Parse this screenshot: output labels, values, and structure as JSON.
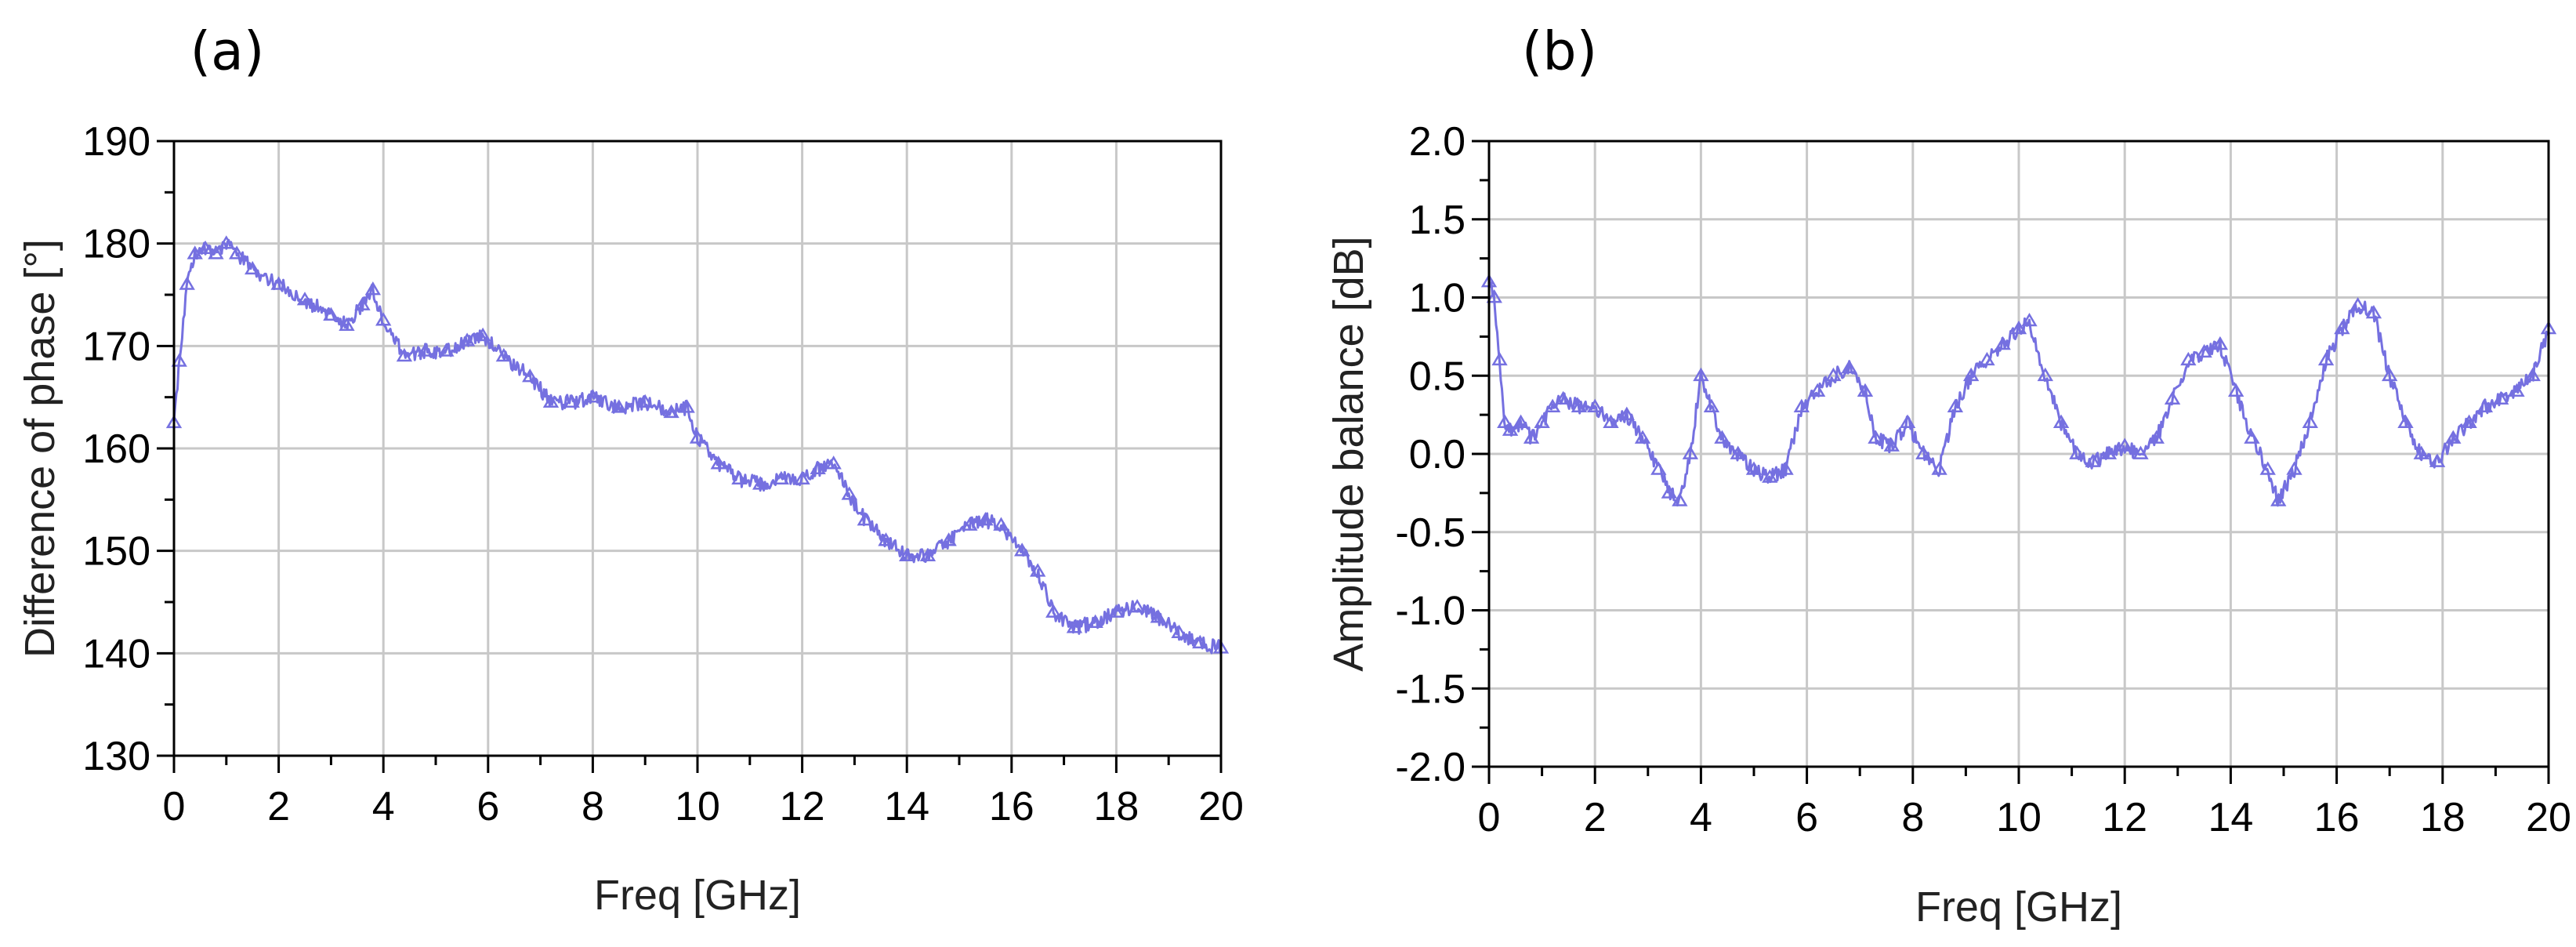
{
  "chart_data": [
    {
      "panel_label": "(a)",
      "type": "line",
      "xlabel": "Freq [GHz]",
      "ylabel": "Difference of phase [°]",
      "xlim": [
        0,
        20
      ],
      "ylim": [
        130,
        190
      ],
      "xticks": [
        0,
        2,
        4,
        6,
        8,
        10,
        12,
        14,
        16,
        18,
        20
      ],
      "yticks": [
        130,
        140,
        150,
        160,
        170,
        180,
        190
      ],
      "xtick_labels": [
        "0",
        "2",
        "4",
        "6",
        "8",
        "10",
        "12",
        "14",
        "16",
        "18",
        "20"
      ],
      "ytick_labels": [
        "130",
        "140",
        "150",
        "160",
        "170",
        "180",
        "190"
      ],
      "grid": true,
      "color": "#7570e0",
      "series": [
        {
          "x": [
            0.0,
            0.1,
            0.25,
            0.4,
            0.6,
            0.8,
            1.0,
            1.2,
            1.5,
            2.0,
            2.5,
            3.0,
            3.3,
            3.6,
            3.8,
            4.0,
            4.4,
            4.8,
            5.2,
            5.6,
            5.9,
            6.3,
            6.8,
            7.2,
            7.6,
            8.0,
            8.5,
            9.0,
            9.5,
            9.8,
            10.0,
            10.4,
            10.8,
            11.2,
            11.6,
            12.0,
            12.3,
            12.6,
            12.9,
            13.2,
            13.6,
            14.0,
            14.4,
            14.8,
            15.2,
            15.5,
            15.8,
            16.2,
            16.5,
            16.8,
            17.2,
            17.6,
            18.0,
            18.4,
            18.8,
            19.2,
            19.6,
            20.0
          ],
          "values": [
            162.5,
            168.5,
            176.0,
            179.0,
            179.5,
            179.0,
            180.0,
            179.0,
            177.5,
            176.0,
            174.5,
            173.0,
            172.0,
            174.0,
            175.5,
            172.5,
            169.0,
            169.5,
            169.5,
            170.5,
            171.0,
            169.0,
            167.0,
            164.5,
            164.5,
            165.0,
            164.0,
            164.5,
            163.5,
            164.0,
            161.0,
            158.5,
            157.0,
            156.5,
            157.0,
            157.0,
            158.0,
            158.5,
            155.5,
            153.0,
            151.0,
            149.5,
            149.5,
            151.0,
            152.5,
            153.0,
            152.5,
            150.0,
            148.0,
            144.0,
            142.5,
            143.0,
            144.0,
            144.5,
            143.5,
            142.0,
            141.0,
            140.5
          ]
        }
      ]
    },
    {
      "panel_label": "(b)",
      "type": "line",
      "xlabel": "Freq [GHz]",
      "ylabel": "Amplitude balance [dB]",
      "xlim": [
        0,
        20
      ],
      "ylim": [
        -2.0,
        2.0
      ],
      "xticks": [
        0,
        2,
        4,
        6,
        8,
        10,
        12,
        14,
        16,
        18,
        20
      ],
      "yticks": [
        -2.0,
        -1.5,
        -1.0,
        -0.5,
        0.0,
        0.5,
        1.0,
        1.5,
        2.0
      ],
      "xtick_labels": [
        "0",
        "2",
        "4",
        "6",
        "8",
        "10",
        "12",
        "14",
        "16",
        "18",
        "20"
      ],
      "ytick_labels": [
        "-2.0",
        "-1.5",
        "-1.0",
        "-0.5",
        "0.0",
        "0.5",
        "1.0",
        "1.5",
        "2.0"
      ],
      "grid": true,
      "color": "#7570e0",
      "series": [
        {
          "x": [
            0.0,
            0.1,
            0.2,
            0.3,
            0.4,
            0.6,
            0.8,
            1.0,
            1.2,
            1.4,
            1.7,
            2.0,
            2.3,
            2.6,
            2.9,
            3.2,
            3.4,
            3.6,
            3.8,
            4.0,
            4.2,
            4.4,
            4.7,
            5.0,
            5.3,
            5.6,
            5.9,
            6.2,
            6.5,
            6.8,
            7.1,
            7.3,
            7.6,
            7.9,
            8.2,
            8.5,
            8.8,
            9.1,
            9.4,
            9.7,
            10.0,
            10.2,
            10.5,
            10.8,
            11.1,
            11.4,
            11.7,
            12.0,
            12.3,
            12.6,
            12.9,
            13.2,
            13.5,
            13.8,
            14.1,
            14.4,
            14.7,
            14.9,
            15.2,
            15.5,
            15.8,
            16.1,
            16.4,
            16.7,
            17.0,
            17.3,
            17.6,
            17.9,
            18.2,
            18.5,
            18.8,
            19.1,
            19.4,
            19.7,
            20.0
          ],
          "values": [
            1.1,
            1.0,
            0.6,
            0.2,
            0.15,
            0.2,
            0.1,
            0.2,
            0.3,
            0.35,
            0.3,
            0.3,
            0.2,
            0.25,
            0.1,
            -0.1,
            -0.25,
            -0.3,
            0.0,
            0.5,
            0.3,
            0.1,
            0.0,
            -0.1,
            -0.15,
            -0.1,
            0.3,
            0.4,
            0.5,
            0.55,
            0.4,
            0.1,
            0.05,
            0.2,
            0.0,
            -0.1,
            0.3,
            0.5,
            0.6,
            0.7,
            0.8,
            0.85,
            0.5,
            0.2,
            0.0,
            -0.05,
            0.0,
            0.05,
            0.0,
            0.1,
            0.35,
            0.6,
            0.65,
            0.7,
            0.4,
            0.1,
            -0.1,
            -0.3,
            -0.1,
            0.2,
            0.6,
            0.8,
            0.95,
            0.9,
            0.5,
            0.2,
            0.0,
            -0.05,
            0.1,
            0.2,
            0.3,
            0.35,
            0.4,
            0.5,
            0.8
          ]
        }
      ]
    }
  ]
}
